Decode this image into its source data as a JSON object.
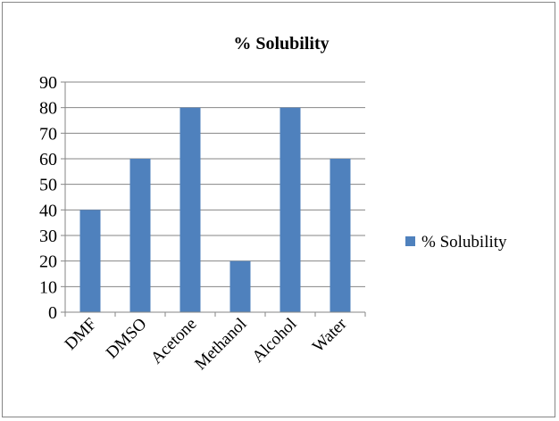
{
  "chart_data": {
    "type": "bar",
    "title": "% Solubility",
    "categories": [
      "DMF",
      "DMSO",
      "Acetone",
      "Methanol",
      "Alcohol",
      "Water"
    ],
    "series": [
      {
        "name": "% Solubility",
        "values": [
          40,
          60,
          80,
          20,
          80,
          60
        ],
        "color": "#4F81BD"
      }
    ],
    "ylim": [
      0,
      90
    ],
    "yticks": [
      "0",
      "10",
      "20",
      "30",
      "40",
      "50",
      "60",
      "70",
      "80",
      "90"
    ],
    "grid": true,
    "legend": "right",
    "xlabel": "",
    "ylabel": ""
  }
}
